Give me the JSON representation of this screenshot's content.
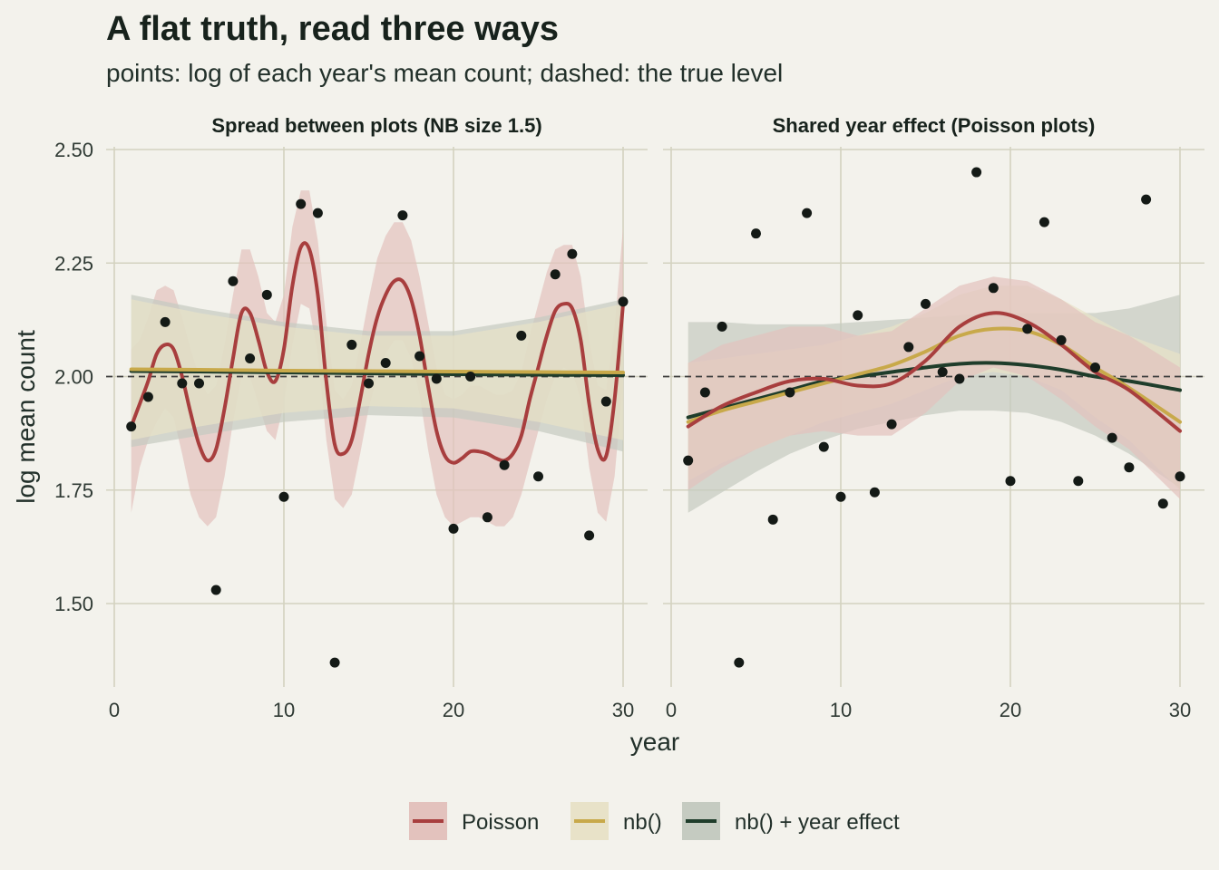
{
  "chart_data": {
    "type": "line",
    "title": "A flat truth, read three ways",
    "subtitle": "points: log of each year's mean count; dashed: the true level",
    "xlabel": "year",
    "ylabel": "log mean count",
    "xlim": [
      0,
      31
    ],
    "ylim": [
      1.33,
      2.5
    ],
    "xticks": [
      0,
      10,
      20,
      30
    ],
    "yticks": [
      1.5,
      1.75,
      2.0,
      2.25,
      2.5
    ],
    "ytick_labels": [
      "1.50",
      "1.75",
      "2.00",
      "2.25",
      "2.50"
    ],
    "reference_line": 2.0,
    "grid": true,
    "legend_position": "bottom",
    "legend": [
      {
        "key": "poisson",
        "label": "Poisson",
        "color": "#a83e3e",
        "fill": "#e3c2bd"
      },
      {
        "key": "nb",
        "label": "nb()",
        "color": "#c8a94a",
        "fill": "#e8e2c8"
      },
      {
        "key": "nb_year",
        "label": "nb() + year effect",
        "color": "#1f3d2b",
        "fill": "#c5cbc1"
      }
    ],
    "panels": [
      {
        "title": "Spread between plots (NB size 1.5)",
        "points": {
          "x": [
            1,
            2,
            3,
            4,
            5,
            6,
            7,
            8,
            9,
            10,
            11,
            12,
            13,
            14,
            15,
            16,
            17,
            18,
            19,
            20,
            21,
            22,
            23,
            24,
            25,
            26,
            27,
            28,
            29,
            30
          ],
          "y": [
            1.89,
            1.955,
            2.12,
            1.985,
            1.985,
            1.53,
            2.21,
            2.04,
            2.18,
            1.735,
            2.38,
            2.36,
            1.37,
            2.07,
            1.985,
            2.03,
            2.355,
            2.045,
            1.995,
            1.665,
            2.0,
            1.69,
            1.805,
            2.09,
            1.78,
            2.225,
            2.27,
            1.65,
            1.945,
            2.165
          ]
        },
        "series": [
          {
            "key": "poisson",
            "x": [
              1,
              1.5,
              2,
              2.5,
              3,
              3.5,
              4,
              4.5,
              5,
              5.5,
              6,
              6.5,
              7,
              7.5,
              8,
              8.5,
              9,
              9.5,
              10,
              10.5,
              11,
              11.5,
              12,
              12.5,
              13,
              13.5,
              14,
              14.5,
              15,
              15.5,
              16,
              16.5,
              17,
              17.5,
              18,
              18.5,
              19,
              19.5,
              20,
              20.5,
              21,
              21.5,
              22,
              22.5,
              23,
              23.5,
              24,
              24.5,
              25,
              25.5,
              26,
              26.5,
              27,
              27.5,
              28,
              28.5,
              29,
              29.5,
              30
            ],
            "y": [
              1.89,
              1.94,
              1.99,
              2.05,
              2.07,
              2.06,
              2.0,
              1.92,
              1.85,
              1.815,
              1.84,
              1.93,
              2.04,
              2.14,
              2.14,
              2.08,
              2.01,
              1.99,
              2.06,
              2.2,
              2.285,
              2.28,
              2.18,
              1.99,
              1.85,
              1.83,
              1.86,
              1.95,
              2.05,
              2.13,
              2.18,
              2.21,
              2.21,
              2.17,
              2.09,
              1.98,
              1.88,
              1.825,
              1.81,
              1.82,
              1.835,
              1.835,
              1.83,
              1.82,
              1.815,
              1.83,
              1.87,
              1.95,
              2.02,
              2.09,
              2.145,
              2.16,
              2.15,
              2.08,
              1.94,
              1.84,
              1.825,
              1.95,
              2.16
            ],
            "lower": [
              1.7,
              1.8,
              1.86,
              1.9,
              1.93,
              1.91,
              1.83,
              1.74,
              1.69,
              1.67,
              1.69,
              1.78,
              1.9,
              2.0,
              2.0,
              1.94,
              1.88,
              1.86,
              1.94,
              2.07,
              2.16,
              2.15,
              2.05,
              1.86,
              1.73,
              1.71,
              1.74,
              1.83,
              1.93,
              2.0,
              2.05,
              2.08,
              2.08,
              2.04,
              1.96,
              1.84,
              1.74,
              1.69,
              1.67,
              1.68,
              1.69,
              1.69,
              1.68,
              1.67,
              1.67,
              1.69,
              1.74,
              1.81,
              1.88,
              1.95,
              2.0,
              2.02,
              2.01,
              1.95,
              1.8,
              1.7,
              1.68,
              1.78,
              1.99
            ],
            "upper": [
              2.06,
              2.08,
              2.13,
              2.19,
              2.2,
              2.19,
              2.13,
              2.06,
              2.0,
              1.96,
              1.98,
              2.07,
              2.18,
              2.28,
              2.28,
              2.22,
              2.14,
              2.12,
              2.18,
              2.33,
              2.41,
              2.41,
              2.3,
              2.12,
              1.97,
              1.95,
              1.98,
              2.07,
              2.17,
              2.26,
              2.31,
              2.34,
              2.34,
              2.3,
              2.22,
              2.12,
              2.02,
              1.96,
              1.95,
              1.96,
              1.98,
              1.98,
              1.97,
              1.96,
              1.96,
              1.97,
              2.01,
              2.09,
              2.16,
              2.23,
              2.28,
              2.29,
              2.29,
              2.22,
              2.08,
              1.98,
              1.97,
              2.11,
              2.33
            ]
          },
          {
            "key": "nb_year",
            "x": [
              1,
              5,
              10,
              15,
              20,
              25,
              30
            ],
            "y": [
              2.012,
              2.011,
              2.009,
              2.007,
              2.005,
              2.004,
              2.003
            ],
            "lower": [
              1.845,
              1.87,
              1.9,
              1.915,
              1.91,
              1.88,
              1.835
            ],
            "upper": [
              2.18,
              2.15,
              2.12,
              2.1,
              2.1,
              2.13,
              2.17
            ]
          },
          {
            "key": "nb",
            "x": [
              1,
              5,
              10,
              15,
              20,
              25,
              30
            ],
            "y": [
              2.016,
              2.015,
              2.013,
              2.012,
              2.011,
              2.01,
              2.009
            ],
            "lower": [
              1.86,
              1.89,
              1.92,
              1.935,
              1.93,
              1.9,
              1.86
            ],
            "upper": [
              2.17,
              2.14,
              2.11,
              2.09,
              2.09,
              2.12,
              2.16
            ]
          }
        ]
      },
      {
        "title": "Shared year effect (Poisson plots)",
        "points": {
          "x": [
            1,
            2,
            3,
            4,
            5,
            6,
            7,
            8,
            9,
            10,
            11,
            12,
            13,
            14,
            15,
            16,
            17,
            18,
            19,
            20,
            21,
            22,
            23,
            24,
            25,
            26,
            27,
            28,
            29,
            30
          ],
          "y": [
            1.815,
            1.965,
            2.11,
            1.37,
            2.315,
            1.685,
            1.965,
            2.36,
            1.845,
            1.735,
            2.135,
            1.745,
            1.895,
            2.065,
            2.16,
            2.01,
            1.995,
            2.45,
            2.195,
            1.77,
            2.105,
            2.34,
            2.08,
            1.77,
            2.02,
            1.865,
            1.8,
            2.39,
            1.72,
            1.78
          ]
        },
        "series": [
          {
            "key": "nb_year",
            "x": [
              1,
              3,
              5,
              7,
              9,
              11,
              13,
              15,
              17,
              19,
              21,
              23,
              25,
              27,
              30
            ],
            "y": [
              1.91,
              1.93,
              1.95,
              1.97,
              1.99,
              2.0,
              2.01,
              2.02,
              2.028,
              2.03,
              2.025,
              2.015,
              2.0,
              1.99,
              1.97
            ],
            "lower": [
              1.7,
              1.745,
              1.79,
              1.83,
              1.86,
              1.885,
              1.9,
              1.915,
              1.925,
              1.925,
              1.92,
              1.9,
              1.87,
              1.83,
              1.755
            ],
            "upper": [
              2.12,
              2.12,
              2.115,
              2.115,
              2.115,
              2.12,
              2.125,
              2.13,
              2.135,
              2.14,
              2.14,
              2.14,
              2.14,
              2.15,
              2.18
            ]
          },
          {
            "key": "nb",
            "x": [
              1,
              3,
              5,
              7,
              9,
              11,
              13,
              15,
              17,
              19,
              21,
              23,
              25,
              27,
              30
            ],
            "y": [
              1.9,
              1.925,
              1.945,
              1.965,
              1.985,
              2.005,
              2.025,
              2.055,
              2.09,
              2.105,
              2.1,
              2.07,
              2.02,
              1.975,
              1.9
            ],
            "lower": [
              1.77,
              1.81,
              1.84,
              1.87,
              1.9,
              1.92,
              1.94,
              1.97,
              2.0,
              2.01,
              2.0,
              1.97,
              1.91,
              1.86,
              1.75
            ],
            "upper": [
              2.03,
              2.04,
              2.05,
              2.06,
              2.07,
              2.09,
              2.11,
              2.14,
              2.18,
              2.2,
              2.2,
              2.17,
              2.13,
              2.09,
              2.05
            ]
          },
          {
            "key": "poisson",
            "x": [
              1,
              3,
              5,
              7,
              9,
              11,
              13,
              15,
              17,
              19,
              21,
              23,
              25,
              27,
              30
            ],
            "y": [
              1.89,
              1.935,
              1.965,
              1.99,
              1.995,
              1.98,
              1.985,
              2.035,
              2.11,
              2.14,
              2.12,
              2.07,
              2.01,
              1.97,
              1.88
            ],
            "lower": [
              1.75,
              1.8,
              1.84,
              1.87,
              1.88,
              1.87,
              1.87,
              1.92,
              1.99,
              2.02,
              2.0,
              1.95,
              1.89,
              1.84,
              1.73
            ],
            "upper": [
              2.03,
              2.07,
              2.09,
              2.11,
              2.11,
              2.09,
              2.1,
              2.15,
              2.2,
              2.22,
              2.21,
              2.17,
              2.12,
              2.09,
              2.02
            ]
          }
        ]
      }
    ]
  }
}
